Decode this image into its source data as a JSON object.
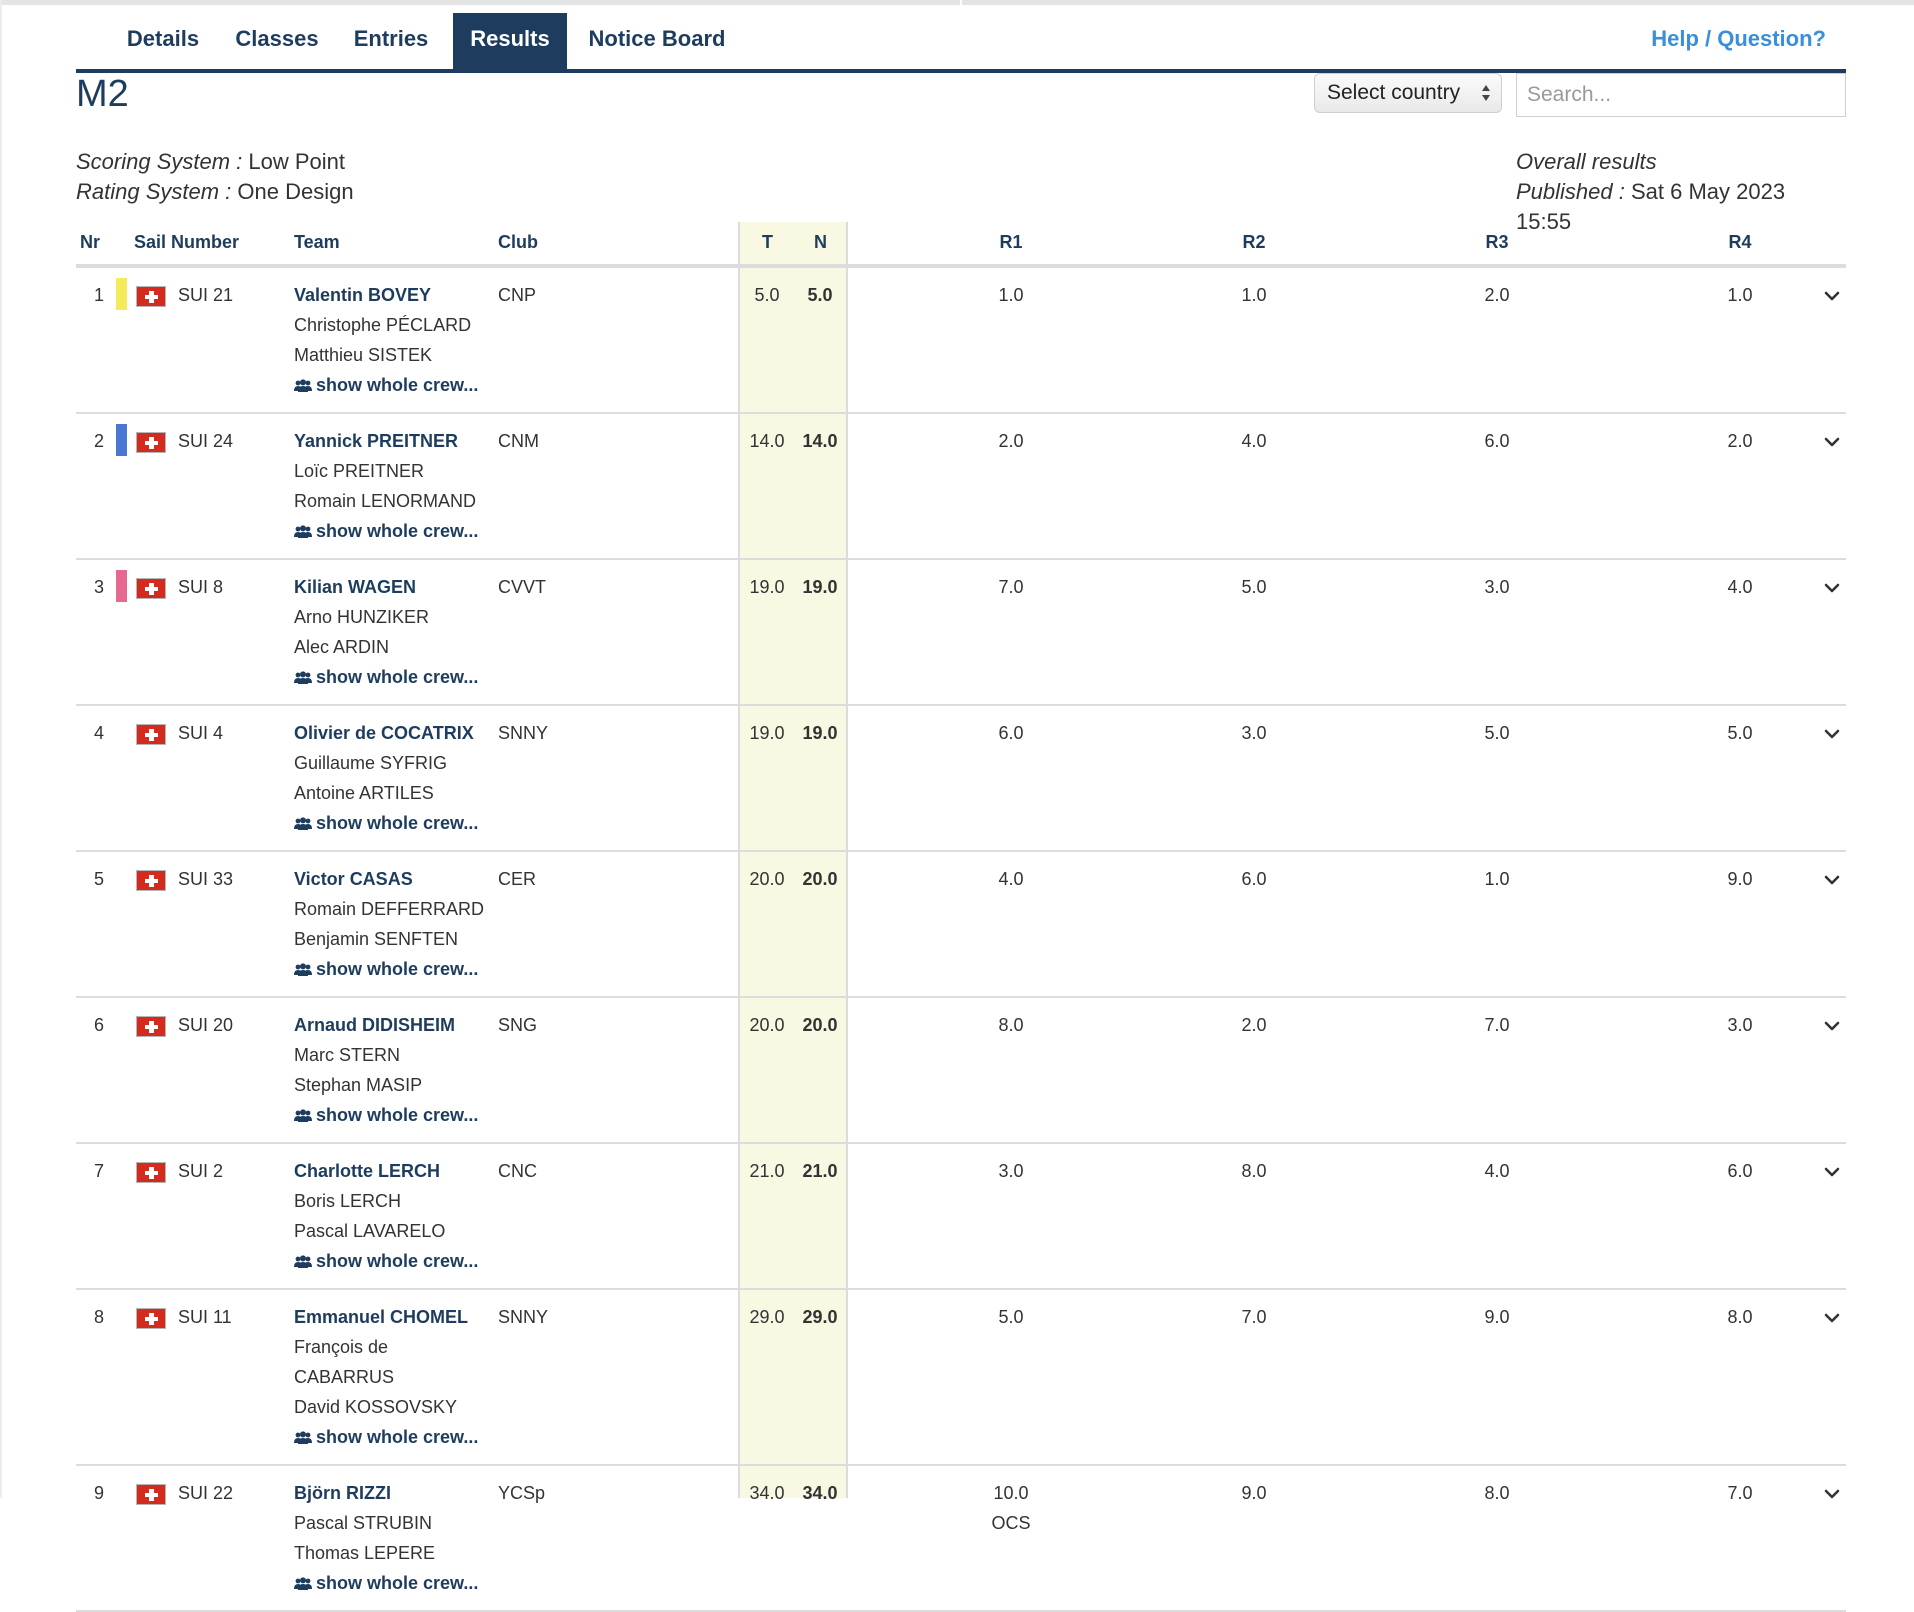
{
  "tabs": [
    {
      "label": "Details"
    },
    {
      "label": "Classes"
    },
    {
      "label": "Entries"
    },
    {
      "label": "Results"
    },
    {
      "label": "Notice Board"
    }
  ],
  "help_label": "Help / Question?",
  "class_title": "M2",
  "country_select": {
    "value": "Select country"
  },
  "search": {
    "placeholder": "Search..."
  },
  "meta": {
    "scoring_label": "Scoring System :",
    "scoring_value": "Low Point",
    "rating_label": "Rating System :",
    "rating_value": "One Design",
    "overall": "Overall results",
    "published_label": "Published :",
    "published_value": "Sat 6 May 2023 15:55"
  },
  "columns": {
    "nr": "Nr",
    "sail": "Sail Number",
    "team": "Team",
    "club": "Club",
    "t": "T",
    "n": "N",
    "r1": "R1",
    "r2": "R2",
    "r3": "R3",
    "r4": "R4"
  },
  "crew_link_label": "show whole crew...",
  "rows": [
    {
      "nr": "1",
      "medal_color": "#f5ea5a",
      "sail": "SUI 21",
      "skipper": "Valentin BOVEY",
      "crew": [
        "Christophe PÉCLARD",
        "Matthieu SISTEK"
      ],
      "club": "CNP",
      "t": "5.0",
      "n": "5.0",
      "r1": "1.0",
      "r2": "1.0",
      "r3": "2.0",
      "r4": "1.0"
    },
    {
      "nr": "2",
      "medal_color": "#4a76d4",
      "sail": "SUI 24",
      "skipper": "Yannick PREITNER",
      "crew": [
        "Loïc PREITNER",
        "Romain LENORMAND"
      ],
      "club": "CNM",
      "t": "14.0",
      "n": "14.0",
      "r1": "2.0",
      "r2": "4.0",
      "r3": "6.0",
      "r4": "2.0"
    },
    {
      "nr": "3",
      "medal_color": "#e8698f",
      "sail": "SUI 8",
      "skipper": "Kilian WAGEN",
      "crew": [
        "Arno HUNZIKER",
        "Alec ARDIN"
      ],
      "club": "CVVT",
      "t": "19.0",
      "n": "19.0",
      "r1": "7.0",
      "r2": "5.0",
      "r3": "3.0",
      "r4": "4.0"
    },
    {
      "nr": "4",
      "sail": "SUI 4",
      "skipper": "Olivier de COCATRIX",
      "crew": [
        "Guillaume SYFRIG",
        "Antoine ARTILES"
      ],
      "club": "SNNY",
      "t": "19.0",
      "n": "19.0",
      "r1": "6.0",
      "r2": "3.0",
      "r3": "5.0",
      "r4": "5.0"
    },
    {
      "nr": "5",
      "sail": "SUI 33",
      "skipper": "Victor CASAS",
      "crew": [
        "Romain DEFFERRARD",
        "Benjamin SENFTEN"
      ],
      "club": "CER",
      "t": "20.0",
      "n": "20.0",
      "r1": "4.0",
      "r2": "6.0",
      "r3": "1.0",
      "r4": "9.0"
    },
    {
      "nr": "6",
      "sail": "SUI 20",
      "skipper": "Arnaud DIDISHEIM",
      "crew": [
        "Marc STERN",
        "Stephan MASIP"
      ],
      "club": "SNG",
      "t": "20.0",
      "n": "20.0",
      "r1": "8.0",
      "r2": "2.0",
      "r3": "7.0",
      "r4": "3.0"
    },
    {
      "nr": "7",
      "sail": "SUI 2",
      "skipper": "Charlotte LERCH",
      "crew": [
        "Boris LERCH",
        "Pascal LAVARELO"
      ],
      "club": "CNC",
      "t": "21.0",
      "n": "21.0",
      "r1": "3.0",
      "r2": "8.0",
      "r3": "4.0",
      "r4": "6.0"
    },
    {
      "nr": "8",
      "sail": "SUI 11",
      "skipper": "Emmanuel CHOMEL",
      "crew": [
        "François de",
        "CABARRUS",
        "David KOSSOVSKY"
      ],
      "club": "SNNY",
      "t": "29.0",
      "n": "29.0",
      "r1": "5.0",
      "r2": "7.0",
      "r3": "9.0",
      "r4": "8.0"
    },
    {
      "nr": "9",
      "sail": "SUI 22",
      "skipper": "Björn RIZZI",
      "crew": [
        "Pascal STRUBIN",
        "Thomas LEPERE"
      ],
      "club": "YCSp",
      "t": "34.0",
      "n": "34.0",
      "r1": "10.0",
      "r1_note": "OCS",
      "r2": "9.0",
      "r3": "8.0",
      "r4": "7.0"
    }
  ]
}
